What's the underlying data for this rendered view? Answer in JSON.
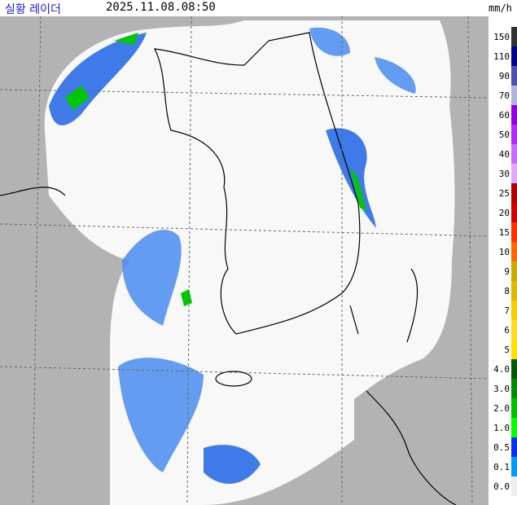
{
  "header": {
    "title": "실황 레이더",
    "timestamp": "2025.11.08.08:50"
  },
  "legend": {
    "unit": "mm/h",
    "levels": [
      {
        "label": "150",
        "color": "#333333"
      },
      {
        "label": "110",
        "color": "#000390"
      },
      {
        "label": "90",
        "color": "#4c4eb1"
      },
      {
        "label": "70",
        "color": "#b3b4de"
      },
      {
        "label": "60",
        "color": "#9300e4"
      },
      {
        "label": "50",
        "color": "#b329ff"
      },
      {
        "label": "40",
        "color": "#c969ff"
      },
      {
        "label": "30",
        "color": "#e0a9ff"
      },
      {
        "label": "25",
        "color": "#b40000"
      },
      {
        "label": "20",
        "color": "#d20000"
      },
      {
        "label": "15",
        "color": "#ff3200"
      },
      {
        "label": "10",
        "color": "#ff6600"
      },
      {
        "label": "9",
        "color": "#ccaa00"
      },
      {
        "label": "8",
        "color": "#e0b900"
      },
      {
        "label": "7",
        "color": "#f9cd00"
      },
      {
        "label": "6",
        "color": "#ffdc1f"
      },
      {
        "label": "5",
        "color": "#ffe100"
      },
      {
        "label": "4.0",
        "color": "#005a00"
      },
      {
        "label": "3.0",
        "color": "#008c00"
      },
      {
        "label": "2.0",
        "color": "#00be00"
      },
      {
        "label": "1.0",
        "color": "#00ff00"
      },
      {
        "label": "0.5",
        "color": "#0033f5"
      },
      {
        "label": "0.1",
        "color": "#009bf5"
      },
      {
        "label": "0.0",
        "color": "#eeeeee"
      }
    ]
  }
}
